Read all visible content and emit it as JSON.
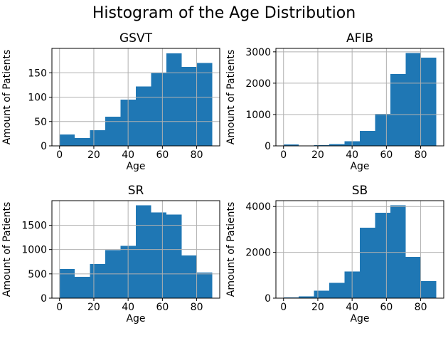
{
  "figure": {
    "suptitle": "Histogram of the Age Distribution",
    "background": "#ffffff",
    "bar_color": "#1f77b4",
    "grid_color": "#b0b0b0",
    "axis_color": "#000000",
    "text_color": "#000000"
  },
  "chart_data": [
    {
      "type": "bar",
      "title": "GSVT",
      "xlabel": "Age",
      "ylabel": "Amount of Patients",
      "bin_edges": [
        0,
        8.9,
        17.8,
        26.7,
        35.6,
        44.5,
        53.4,
        62.3,
        71.2,
        80.1,
        89
      ],
      "values": [
        23,
        16,
        32,
        60,
        95,
        122,
        150,
        190,
        162,
        170
      ],
      "xticks": [
        0,
        20,
        40,
        60,
        80
      ],
      "yticks": [
        0,
        50,
        100,
        150
      ],
      "xlim": [
        -4.45,
        93.45
      ],
      "ylim": [
        0,
        200
      ],
      "grid": true,
      "legend": "none"
    },
    {
      "type": "bar",
      "title": "AFIB",
      "xlabel": "Age",
      "ylabel": "Amount of Patients",
      "bin_edges": [
        0,
        8.9,
        17.8,
        26.7,
        35.6,
        44.5,
        53.4,
        62.3,
        71.2,
        80.1,
        89
      ],
      "values": [
        40,
        12,
        25,
        55,
        150,
        475,
        1020,
        2290,
        2960,
        2820
      ],
      "xticks": [
        0,
        20,
        40,
        60,
        80
      ],
      "yticks": [
        0,
        1000,
        2000,
        3000
      ],
      "xlim": [
        -4.45,
        93.45
      ],
      "ylim": [
        0,
        3110
      ],
      "grid": true,
      "legend": "none"
    },
    {
      "type": "bar",
      "title": "SR",
      "xlabel": "Age",
      "ylabel": "Amount of Patients",
      "bin_edges": [
        0,
        8.9,
        17.8,
        26.7,
        35.6,
        44.5,
        53.4,
        62.3,
        71.2,
        80.1,
        89
      ],
      "values": [
        600,
        440,
        700,
        990,
        1075,
        1910,
        1760,
        1720,
        875,
        525
      ],
      "xticks": [
        0,
        20,
        40,
        60,
        80
      ],
      "yticks": [
        0,
        500,
        1000,
        1500
      ],
      "xlim": [
        -4.45,
        93.45
      ],
      "ylim": [
        0,
        2005
      ],
      "grid": true,
      "legend": "none"
    },
    {
      "type": "bar",
      "title": "SB",
      "xlabel": "Age",
      "ylabel": "Amount of Patients",
      "bin_edges": [
        0,
        8.9,
        17.8,
        26.7,
        35.6,
        44.5,
        53.4,
        62.3,
        71.2,
        80.1,
        89
      ],
      "values": [
        30,
        75,
        320,
        660,
        1170,
        3080,
        3730,
        4050,
        1800,
        750
      ],
      "xticks": [
        0,
        20,
        40,
        60,
        80
      ],
      "yticks": [
        0,
        2000,
        4000
      ],
      "xlim": [
        -4.45,
        93.45
      ],
      "ylim": [
        0,
        4255
      ],
      "grid": true,
      "legend": "none"
    }
  ]
}
